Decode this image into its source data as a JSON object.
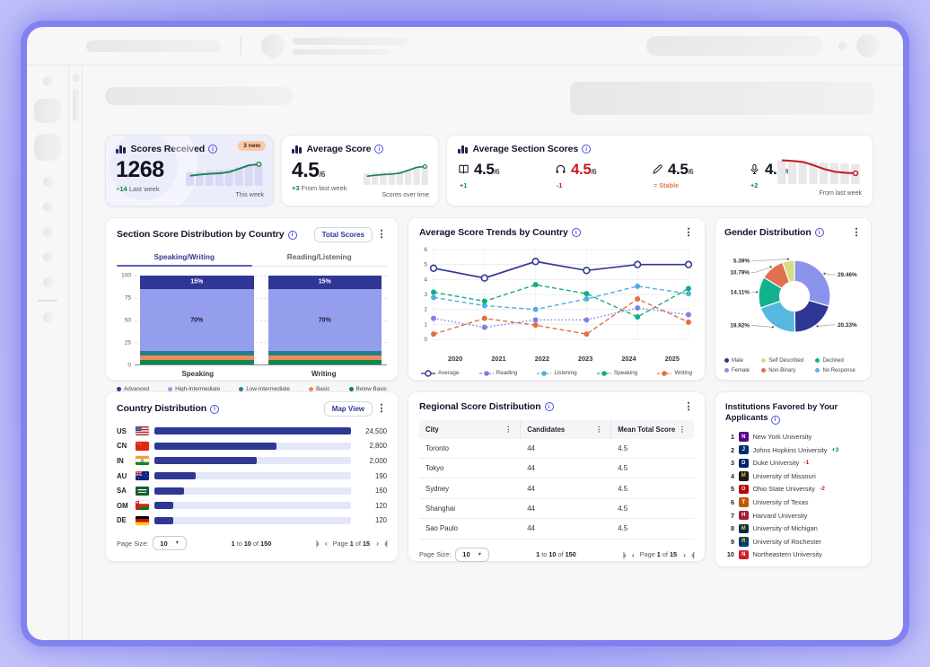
{
  "pagination": {
    "page_size_label": "Page Size:",
    "page_size": "10",
    "from": "1",
    "to_word": "to",
    "range_to": "10",
    "of_word": "of",
    "total": "150",
    "page_word": "Page",
    "page": "1",
    "pages": "15"
  },
  "cards": {
    "scores_received": {
      "title": "Scores Received",
      "badge": "3 new",
      "value": "1268",
      "delta": "+14",
      "delta_label": "Last week",
      "spark_label": "This week"
    },
    "average_score": {
      "title": "Average Score",
      "value": "4.5",
      "denom": "/6",
      "delta": "+3",
      "delta_label": "From last week",
      "spark_label": "Scores over time"
    },
    "section_scores": {
      "title": "Average Section Scores",
      "spark_label": "From last week",
      "metrics": [
        {
          "icon": "book-icon",
          "value": "4.5",
          "denom": "/6",
          "delta": "+1",
          "tone": "up",
          "value_red": false
        },
        {
          "icon": "headphones-icon",
          "value": "4.5",
          "denom": "/6",
          "delta": "-1",
          "tone": "down",
          "value_red": true
        },
        {
          "icon": "pencil-icon",
          "value": "4.5",
          "denom": "/6",
          "delta": "= Stable",
          "tone": "stable",
          "value_red": false
        },
        {
          "icon": "microphone-icon",
          "value": "4.5",
          "denom": "/6",
          "delta": "+2",
          "tone": "up",
          "value_red": false
        }
      ]
    },
    "section_distribution": {
      "title": "Section Score Distribution by Country",
      "button": "Total Scores",
      "tabs": [
        {
          "label": "Speaking/Writing"
        },
        {
          "label": "Reading/Listening"
        }
      ]
    },
    "trends": {
      "title": "Average Score Trends by Country"
    },
    "gender": {
      "title": "Gender Distribution"
    },
    "country_distribution": {
      "title": "Country Distribution",
      "button": "Map View"
    },
    "regional": {
      "title": "Regional Score Distribution"
    },
    "institutions": {
      "title_line1": "Institutions Favored by Your",
      "title_line2": "Applicants",
      "items": [
        {
          "rank": "1",
          "name": "New York University",
          "color": "#57068c",
          "initial": "N",
          "initial_color": "#ffffff",
          "delta": "",
          "tone": ""
        },
        {
          "rank": "2",
          "name": "Johns Hopkins University",
          "color": "#002d72",
          "initial": "J",
          "initial_color": "#ffffff",
          "delta": "+3",
          "tone": "up"
        },
        {
          "rank": "3",
          "name": "Duke University",
          "color": "#012169",
          "initial": "D",
          "initial_color": "#ffffff",
          "delta": "-1",
          "tone": "down"
        },
        {
          "rank": "4",
          "name": "University of Missouri",
          "color": "#1a1a1a",
          "initial": "M",
          "initial_color": "#f1b82d",
          "delta": "",
          "tone": ""
        },
        {
          "rank": "5",
          "name": "Ohio State University",
          "color": "#bb0000",
          "initial": "O",
          "initial_color": "#e8e8e8",
          "delta": "-2",
          "tone": "down"
        },
        {
          "rank": "6",
          "name": "University of Texas",
          "color": "#bf5700",
          "initial": "T",
          "initial_color": "#ffffff",
          "delta": "",
          "tone": ""
        },
        {
          "rank": "7",
          "name": "Harvard University",
          "color": "#a51c30",
          "initial": "H",
          "initial_color": "#ffffff",
          "delta": "",
          "tone": ""
        },
        {
          "rank": "8",
          "name": "University of Michigan",
          "color": "#00274c",
          "initial": "M",
          "initial_color": "#ffcb05",
          "delta": "",
          "tone": ""
        },
        {
          "rank": "9",
          "name": "University of Rochester",
          "color": "#003b71",
          "initial": "R",
          "initial_color": "#ffd100",
          "delta": "",
          "tone": ""
        },
        {
          "rank": "10",
          "name": "Northeastern University",
          "color": "#d41b2c",
          "initial": "N",
          "initial_color": "#ffffff",
          "delta": "",
          "tone": ""
        }
      ]
    }
  },
  "sparks": {
    "received": {
      "bar_color": "#d7daf6",
      "line_color": "#1e7f4f",
      "bars": [
        55,
        58,
        61,
        64,
        67,
        73,
        85,
        90
      ],
      "line_y": [
        60,
        55,
        52,
        50,
        45,
        32,
        18,
        14
      ]
    },
    "average": {
      "bar_color": "#e8e8ea",
      "line_color": "#1e7f4f",
      "bars": [
        55,
        58,
        61,
        64,
        67,
        73,
        85,
        90
      ],
      "line_y": [
        60,
        55,
        52,
        50,
        45,
        32,
        18,
        14
      ]
    },
    "sections": {
      "bar_color": "#e8e8ea",
      "line_color": "#c41e25",
      "bars": [
        88,
        86,
        84,
        82,
        80,
        78,
        76,
        74
      ],
      "line_y": [
        12,
        14,
        18,
        30,
        44,
        54,
        58,
        60
      ]
    }
  },
  "chart_data": [
    {
      "id": "stacked",
      "type": "bar",
      "stacked": true,
      "title": "Section Score Distribution by Country",
      "categories": [
        "Speaking",
        "Writing"
      ],
      "ylim": [
        0,
        100
      ],
      "yticks": [
        0,
        25,
        50,
        75,
        100
      ],
      "series_bottom_up": [
        {
          "name": "Below Basic",
          "color": "#0b8a4b",
          "values": [
            5,
            5
          ],
          "show_label": false
        },
        {
          "name": "Basic",
          "color": "#f08a5c",
          "values": [
            5,
            5
          ],
          "show_label": false
        },
        {
          "name": "Low-Intermediate",
          "color": "#20808f",
          "values": [
            5,
            5
          ],
          "show_label": false
        },
        {
          "name": "High-Intermediate",
          "color": "#959ded",
          "values": [
            70,
            70
          ],
          "show_label": true,
          "label_color": "#1a1a2e"
        },
        {
          "name": "Advanced",
          "color": "#2f3795",
          "values": [
            15,
            15
          ],
          "show_label": true,
          "label_color": "#ffffff"
        }
      ],
      "legend": [
        "Advanced",
        "High-Intermediate",
        "Low-Intermediate",
        "Basic",
        "Below Basic"
      ],
      "legend_colors": [
        "#2f3795",
        "#959ded",
        "#20808f",
        "#f08a5c",
        "#0b8a4b"
      ]
    },
    {
      "id": "trends",
      "type": "line",
      "title": "Average Score Trends by Country",
      "x": [
        "2020",
        "2021",
        "2022",
        "2023",
        "2024",
        "2025"
      ],
      "ylim": [
        0,
        6
      ],
      "yticks": [
        0,
        1,
        2,
        3,
        4,
        5,
        6
      ],
      "series": [
        {
          "name": "Average",
          "color": "#333b8f",
          "style": "solid",
          "marker": "open",
          "values": [
            4.75,
            4.1,
            5.2,
            4.6,
            5.0,
            5.0
          ]
        },
        {
          "name": "Reading",
          "color": "#7b82e8",
          "style": "dotted",
          "marker": "filled",
          "values": [
            1.4,
            0.8,
            1.3,
            1.3,
            2.1,
            1.65
          ]
        },
        {
          "name": "Listening",
          "color": "#53aede",
          "style": "dashed",
          "marker": "filled",
          "values": [
            2.8,
            2.25,
            2.0,
            2.7,
            3.55,
            3.05
          ]
        },
        {
          "name": "Speaking",
          "color": "#0fae85",
          "style": "dashed",
          "marker": "filled",
          "values": [
            3.15,
            2.55,
            3.65,
            3.05,
            1.5,
            3.4
          ]
        },
        {
          "name": "Writing",
          "color": "#e0703f",
          "style": "dashed",
          "marker": "filled",
          "values": [
            0.35,
            1.4,
            0.95,
            0.35,
            2.7,
            1.15
          ]
        }
      ]
    },
    {
      "id": "gender",
      "type": "pie",
      "title": "Gender Distribution",
      "segments_clockwise_from_top": [
        {
          "label": "Female",
          "value": 29.46,
          "color": "#8b93ea"
        },
        {
          "label": "Male",
          "value": 20.33,
          "color": "#2f3795"
        },
        {
          "label": "No Response",
          "value": 19.92,
          "color": "#58b7de"
        },
        {
          "label": "Declined",
          "value": 14.11,
          "color": "#12b38c"
        },
        {
          "label": "Non-Binary",
          "value": 10.79,
          "color": "#df7150"
        },
        {
          "label": "Self Described",
          "value": 5.39,
          "color": "#d6df85"
        }
      ],
      "legend": [
        {
          "label": "Male",
          "color": "#2f3795"
        },
        {
          "label": "Female",
          "color": "#8b93ea"
        },
        {
          "label": "Self Described",
          "color": "#d6df85"
        },
        {
          "label": "Non-Binary",
          "color": "#df7150"
        },
        {
          "label": "Declined",
          "color": "#12b38c"
        },
        {
          "label": "No Response",
          "color": "#58b7de"
        }
      ]
    },
    {
      "id": "country",
      "type": "bar",
      "orientation": "horizontal",
      "title": "Country Distribution",
      "rows": [
        {
          "code": "US",
          "flag": "us",
          "value": "24,500",
          "pct": 100
        },
        {
          "code": "CN",
          "flag": "cn",
          "value": "2,800",
          "pct": 62
        },
        {
          "code": "IN",
          "flag": "in",
          "value": "2,000",
          "pct": 52
        },
        {
          "code": "AU",
          "flag": "au",
          "value": "190",
          "pct": 21
        },
        {
          "code": "SA",
          "flag": "sa",
          "value": "160",
          "pct": 15
        },
        {
          "code": "OM",
          "flag": "om",
          "value": "120",
          "pct": 9.5
        },
        {
          "code": "DE",
          "flag": "de",
          "value": "120",
          "pct": 9.5
        }
      ]
    },
    {
      "id": "regional",
      "type": "table",
      "title": "Regional Score Distribution",
      "columns": [
        "City",
        "Candidates",
        "Mean Total Score"
      ],
      "rows": [
        [
          "Toronto",
          "44",
          "4.5"
        ],
        [
          "Tokyo",
          "44",
          "4.5"
        ],
        [
          "Sydney",
          "44",
          "4.5"
        ],
        [
          "Shanghai",
          "44",
          "4.5"
        ],
        [
          "Sao Paulo",
          "44",
          "4.5"
        ]
      ]
    }
  ]
}
